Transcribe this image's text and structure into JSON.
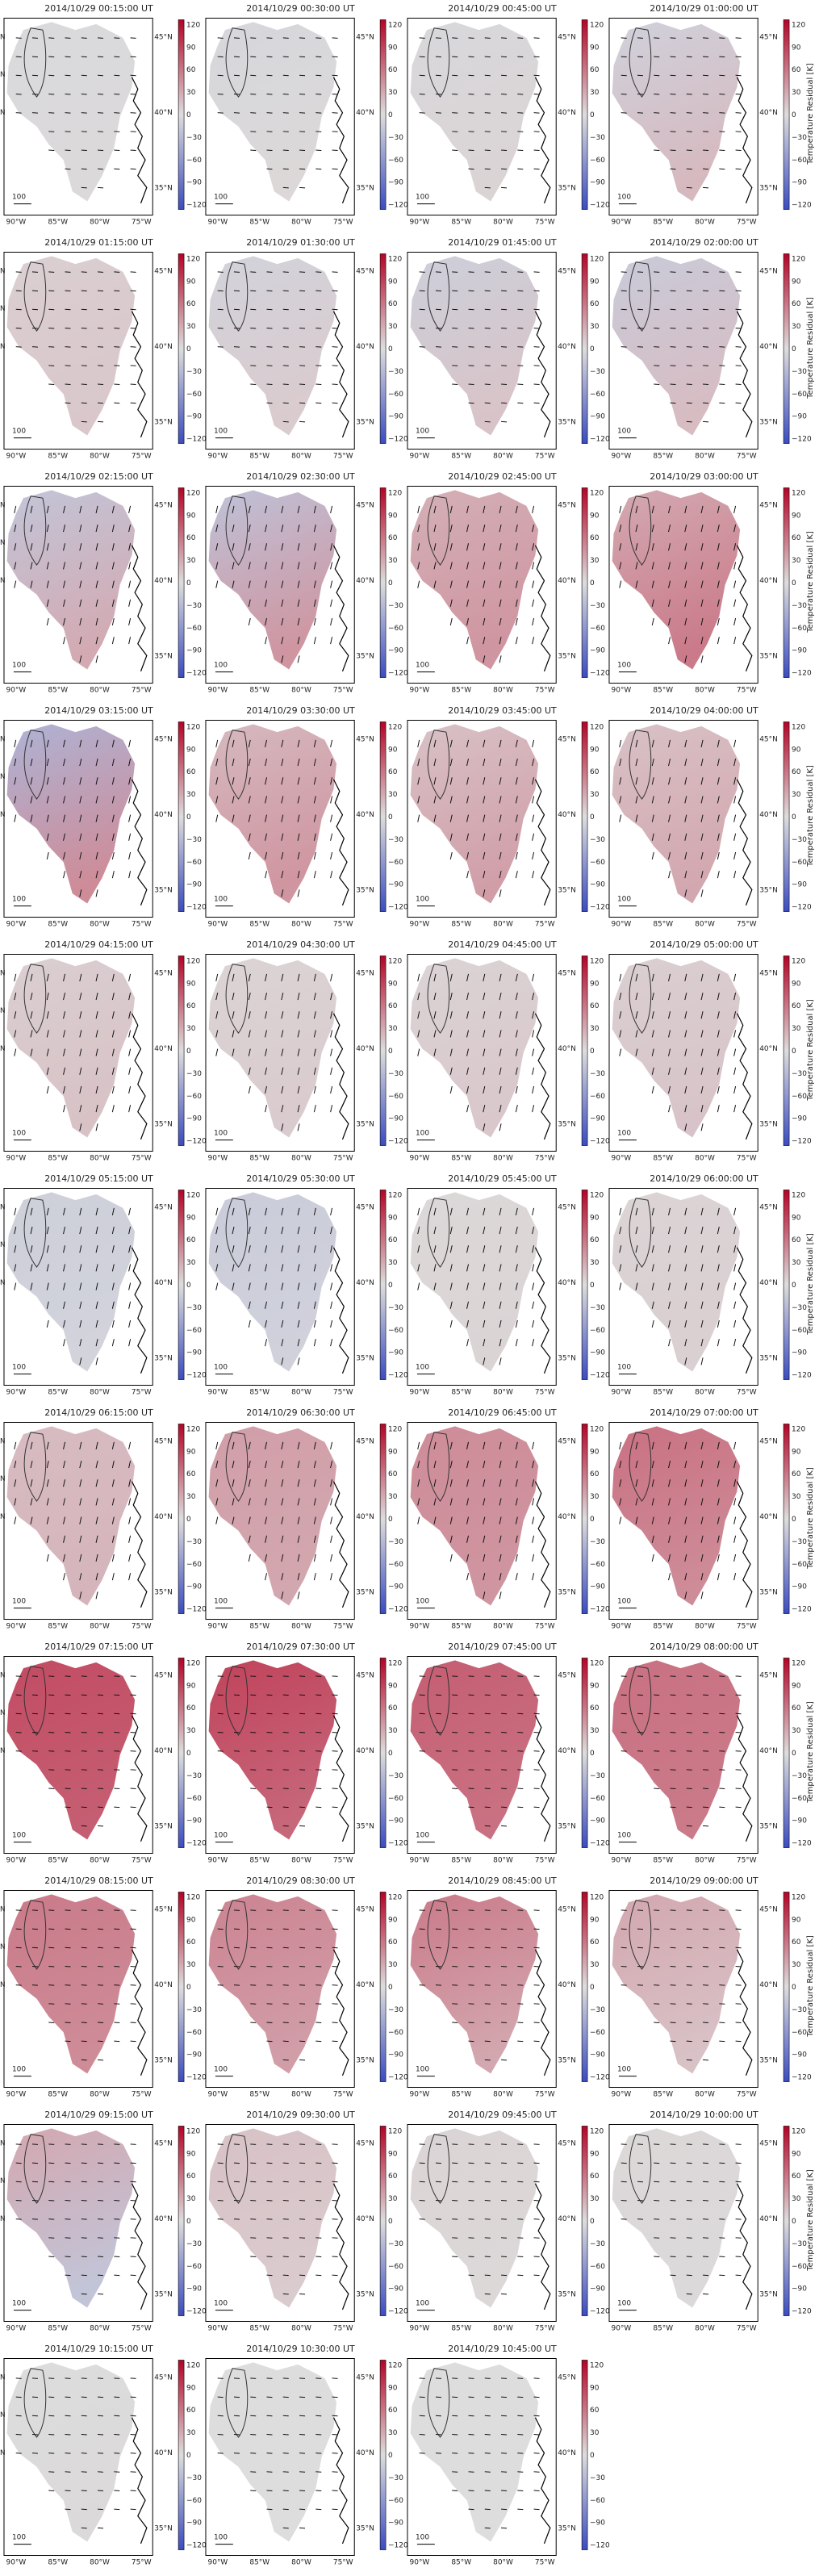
{
  "colormap": {
    "low": "#3b4cc0",
    "mid": "#dddddd",
    "high": "#b40426"
  },
  "colorbar_label": "Temperature Residual [K]",
  "colorbar_ticks": [
    120,
    90,
    60,
    30,
    0,
    -30,
    -60,
    -90,
    -120
  ],
  "lon_ticks": [
    "90°W",
    "85°W",
    "80°W",
    "75°W"
  ],
  "lat_ticks": [
    "45°N",
    "40°N",
    "35°N"
  ],
  "edge_lat_labels": [
    "N",
    "N",
    "N"
  ],
  "scale_label": "100",
  "chart_data": {
    "type": "heatmap",
    "description_units": "Temperature Residual [K]",
    "clim": [
      -120,
      120
    ],
    "frames": [
      {
        "title": "2014/10/29 00:15:00 UT",
        "north": -3,
        "south": 2,
        "wind": "weak"
      },
      {
        "title": "2014/10/29 00:30:00 UT",
        "north": -5,
        "south": 3,
        "wind": "weak"
      },
      {
        "title": "2014/10/29 00:45:00 UT",
        "north": -4,
        "south": 5,
        "wind": "weak"
      },
      {
        "title": "2014/10/29 01:00:00 UT",
        "north": -10,
        "south": 20,
        "wind": "weak"
      },
      {
        "title": "2014/10/29 01:15:00 UT",
        "north": 8,
        "south": 12,
        "wind": "weak"
      },
      {
        "title": "2014/10/29 01:30:00 UT",
        "north": -8,
        "south": 10,
        "wind": "weak"
      },
      {
        "title": "2014/10/29 01:45:00 UT",
        "north": -12,
        "south": 14,
        "wind": "weak"
      },
      {
        "title": "2014/10/29 02:00:00 UT",
        "north": -15,
        "south": 18,
        "wind": "weak"
      },
      {
        "title": "2014/10/29 02:15:00 UT",
        "north": -20,
        "south": 28,
        "wind": "south"
      },
      {
        "title": "2014/10/29 02:30:00 UT",
        "north": -22,
        "south": 40,
        "wind": "south"
      },
      {
        "title": "2014/10/29 02:45:00 UT",
        "north": 25,
        "south": 40,
        "wind": "south"
      },
      {
        "title": "2014/10/29 03:00:00 UT",
        "north": 28,
        "south": 55,
        "wind": "south"
      },
      {
        "title": "2014/10/29 03:15:00 UT",
        "north": -35,
        "south": 45,
        "wind": "south"
      },
      {
        "title": "2014/10/29 03:30:00 UT",
        "north": 20,
        "south": 40,
        "wind": "south"
      },
      {
        "title": "2014/10/29 03:45:00 UT",
        "north": 15,
        "south": 35,
        "wind": "south"
      },
      {
        "title": "2014/10/29 04:00:00 UT",
        "north": 15,
        "south": 30,
        "wind": "south"
      },
      {
        "title": "2014/10/29 04:15:00 UT",
        "north": 8,
        "south": 15,
        "wind": "south"
      },
      {
        "title": "2014/10/29 04:30:00 UT",
        "north": 5,
        "south": 10,
        "wind": "south"
      },
      {
        "title": "2014/10/29 04:45:00 UT",
        "north": 5,
        "south": 12,
        "wind": "south"
      },
      {
        "title": "2014/10/29 05:00:00 UT",
        "north": 8,
        "south": 14,
        "wind": "south"
      },
      {
        "title": "2014/10/29 05:15:00 UT",
        "north": -12,
        "south": -8,
        "wind": "south"
      },
      {
        "title": "2014/10/29 05:30:00 UT",
        "north": -14,
        "south": -10,
        "wind": "south"
      },
      {
        "title": "2014/10/29 05:45:00 UT",
        "north": 3,
        "south": 5,
        "wind": "south"
      },
      {
        "title": "2014/10/29 06:00:00 UT",
        "north": 5,
        "south": 8,
        "wind": "south"
      },
      {
        "title": "2014/10/29 06:15:00 UT",
        "north": 18,
        "south": 22,
        "wind": "south"
      },
      {
        "title": "2014/10/29 06:30:00 UT",
        "north": 35,
        "south": 30,
        "wind": "south"
      },
      {
        "title": "2014/10/29 06:45:00 UT",
        "north": 45,
        "south": 40,
        "wind": "south"
      },
      {
        "title": "2014/10/29 07:00:00 UT",
        "north": 60,
        "south": 45,
        "wind": "south"
      },
      {
        "title": "2014/10/29 07:15:00 UT",
        "north": 80,
        "south": 70,
        "wind": "weak"
      },
      {
        "title": "2014/10/29 07:30:00 UT",
        "north": 85,
        "south": 65,
        "wind": "weak"
      },
      {
        "title": "2014/10/29 07:45:00 UT",
        "north": 70,
        "south": 60,
        "wind": "weak"
      },
      {
        "title": "2014/10/29 08:00:00 UT",
        "north": 60,
        "south": 55,
        "wind": "weak"
      },
      {
        "title": "2014/10/29 08:15:00 UT",
        "north": 55,
        "south": 45,
        "wind": "weak"
      },
      {
        "title": "2014/10/29 08:30:00 UT",
        "north": 50,
        "south": 35,
        "wind": "weak"
      },
      {
        "title": "2014/10/29 08:45:00 UT",
        "north": 55,
        "south": 30,
        "wind": "weak"
      },
      {
        "title": "2014/10/29 09:00:00 UT",
        "north": 30,
        "south": 15,
        "wind": "weak"
      },
      {
        "title": "2014/10/29 09:15:00 UT",
        "north": 30,
        "south": -20,
        "wind": "weak"
      },
      {
        "title": "2014/10/29 09:30:00 UT",
        "north": 15,
        "south": 10,
        "wind": "weak"
      },
      {
        "title": "2014/10/29 09:45:00 UT",
        "north": 5,
        "south": 3,
        "wind": "weak"
      },
      {
        "title": "2014/10/29 10:00:00 UT",
        "north": 3,
        "south": 2,
        "wind": "weak"
      },
      {
        "title": "2014/10/29 10:15:00 UT",
        "north": 0,
        "south": 2,
        "wind": "weak"
      },
      {
        "title": "2014/10/29 10:30:00 UT",
        "north": 0,
        "south": 0,
        "wind": "weak"
      },
      {
        "title": "2014/10/29 10:45:00 UT",
        "north": 0,
        "south": 0,
        "wind": "weak"
      }
    ]
  }
}
